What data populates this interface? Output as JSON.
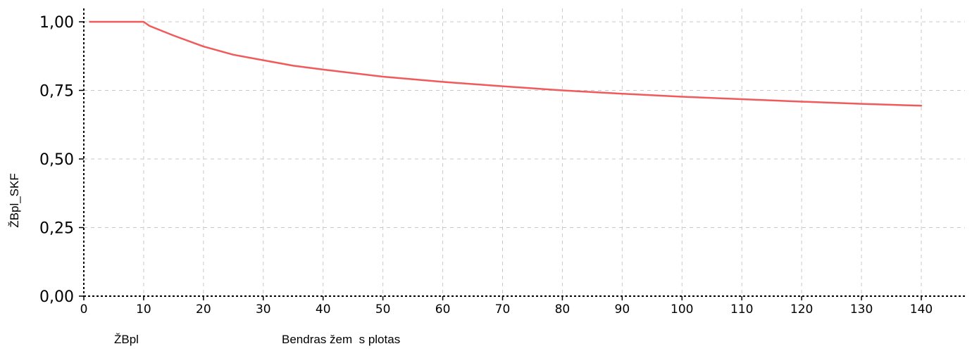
{
  "chart_data": {
    "type": "line",
    "title": "",
    "xlabel_left": "ŽBpl",
    "xlabel": "Bendras žem  s plotas",
    "ylabel": "ŽBpl_SKF",
    "xlim": [
      0,
      147
    ],
    "ylim": [
      0,
      1.05
    ],
    "x_ticks": [
      0,
      10,
      20,
      30,
      40,
      50,
      60,
      70,
      80,
      90,
      100,
      110,
      120,
      130,
      140
    ],
    "x_tick_labels": [
      "0",
      "10",
      "20",
      "30",
      "40",
      "50",
      "60",
      "70",
      "80",
      "90",
      "100",
      "110",
      "120",
      "130",
      "140"
    ],
    "y_ticks": [
      0,
      0.25,
      0.5,
      0.75,
      1.0
    ],
    "y_tick_labels": [
      "0,00",
      "0,25",
      "0,50",
      "0,75",
      "1,00"
    ],
    "grid": true,
    "legend": "none",
    "series": [
      {
        "color": "#f05a5a",
        "x": [
          1,
          10,
          11,
          15,
          20,
          25,
          30,
          35,
          40,
          50,
          60,
          70,
          80,
          90,
          100,
          110,
          120,
          130,
          140
        ],
        "y": [
          1.0,
          1.0,
          0.985,
          0.95,
          0.91,
          0.88,
          0.86,
          0.84,
          0.826,
          0.8,
          0.781,
          0.765,
          0.75,
          0.738,
          0.727,
          0.718,
          0.709,
          0.701,
          0.694
        ]
      }
    ]
  }
}
